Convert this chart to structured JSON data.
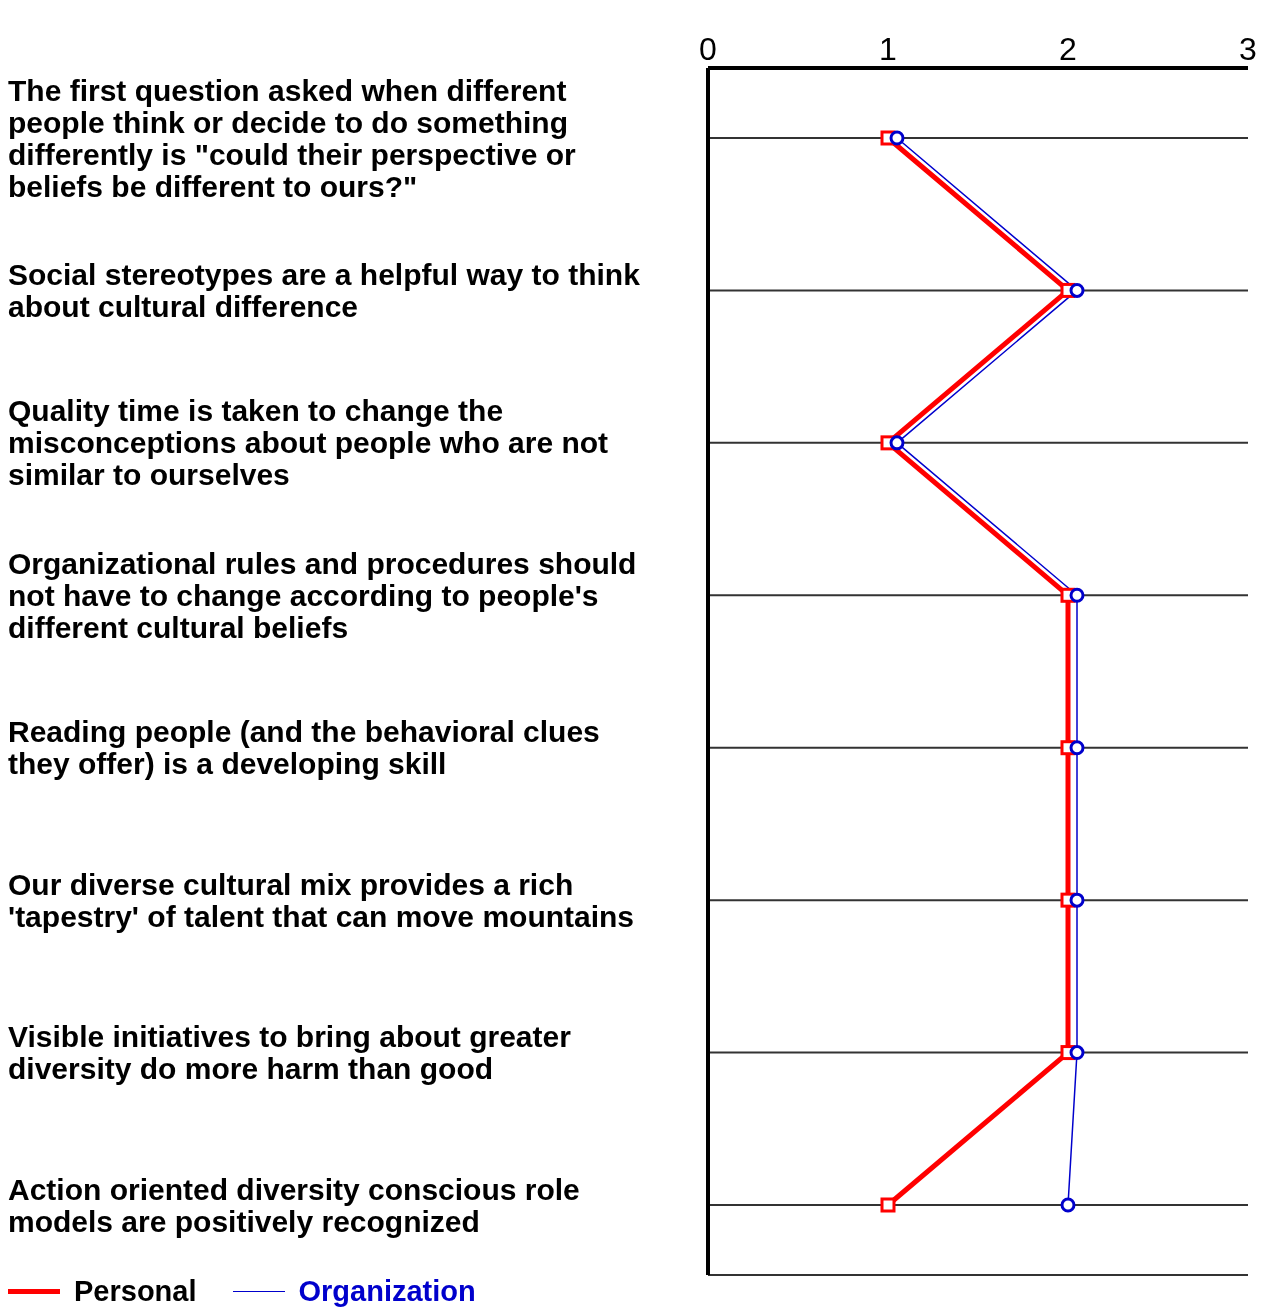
{
  "chart_data": {
    "type": "line",
    "orientation": "horizontal",
    "categories": [
      "The first question asked when different people think or decide to do something differently is \"could their perspective or beliefs be different to ours?\"",
      "Social stereotypes are a helpful way to think about cultural difference",
      "Quality time is taken to change the misconceptions about people who are not similar to ourselves",
      "Organizational rules and procedures should not have to change according to people's different cultural beliefs",
      "Reading people (and the behavioral clues they offer) is a developing skill",
      "Our diverse cultural mix provides a rich 'tapestry' of talent that can move mountains",
      "Visible initiatives to bring about greater diversity do more harm than good",
      "Action oriented diversity conscious role models are positively recognized"
    ],
    "series": [
      {
        "name": "Personal",
        "color": "#ff0000",
        "marker": "square",
        "values": [
          1,
          2,
          1,
          2,
          2,
          2,
          2,
          1
        ]
      },
      {
        "name": "Organization",
        "color": "#0000cc",
        "marker": "circle",
        "values": [
          1.05,
          2.05,
          1.05,
          2.05,
          2.05,
          2.05,
          2.05,
          2
        ]
      }
    ],
    "xlim": [
      0,
      3
    ],
    "xticks": [
      0,
      1,
      2,
      3
    ],
    "grid": "y",
    "legend": "bottom left"
  }
}
